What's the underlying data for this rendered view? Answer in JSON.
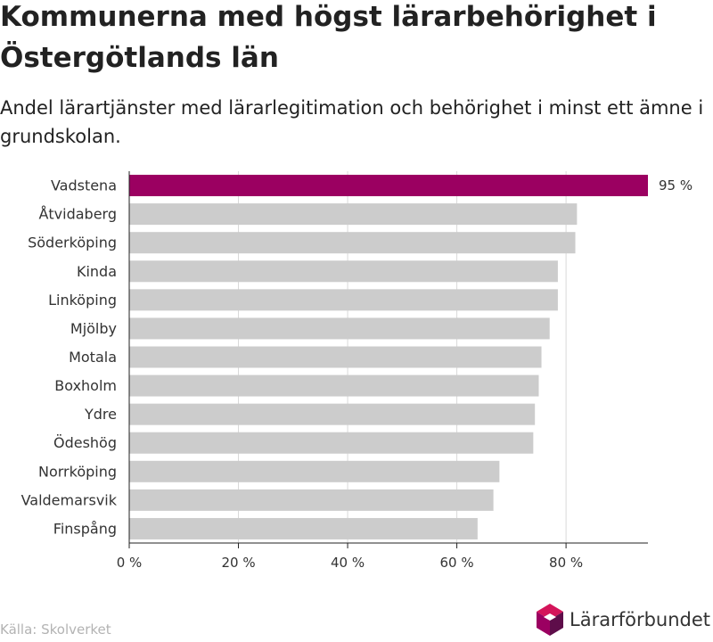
{
  "header": {
    "title": "Kommunerna med högst lärarbehörighet i Östergötlands län",
    "subtitle": "Andel lärartjänster med lärarlegitimation och behörighet i minst ett ämne i grundskolan."
  },
  "chart_data": {
    "type": "bar",
    "orientation": "horizontal",
    "title": "Kommunerna med högst lärarbehörighet i Östergötlands län",
    "subtitle": "Andel lärartjänster med lärarlegitimation och behörighet i minst ett ämne i grundskolan.",
    "xlabel": "",
    "ylabel": "",
    "categories": [
      "Vadstena",
      "Åtvidaberg",
      "Söderköping",
      "Kinda",
      "Linköping",
      "Mjölby",
      "Motala",
      "Boxholm",
      "Ydre",
      "Ödeshög",
      "Norrköping",
      "Valdemarsvik",
      "Finspång"
    ],
    "values": [
      95,
      82,
      81.7,
      78.5,
      78.5,
      77,
      75.5,
      75,
      74.3,
      74,
      67.8,
      66.7,
      63.8
    ],
    "labeled_values": [
      "95 %"
    ],
    "xlim": [
      0,
      95
    ],
    "xticks": [
      0,
      20,
      40,
      60,
      80
    ],
    "xtick_labels": [
      "0 %",
      "20 %",
      "40 %",
      "60 %",
      "80 %"
    ],
    "grid": "vertical",
    "legend": "none",
    "highlight_index": 0,
    "colors": {
      "highlight": "#9b0061",
      "default": "#cccccc",
      "grid": "#d9d9d9",
      "axis": "#222222"
    }
  },
  "footer": {
    "source": "Källa: Skolverket",
    "logo_text": "Lärarförbundet",
    "logo_colors": [
      "#9b0061",
      "#d4145a",
      "#5e0d4a"
    ]
  }
}
